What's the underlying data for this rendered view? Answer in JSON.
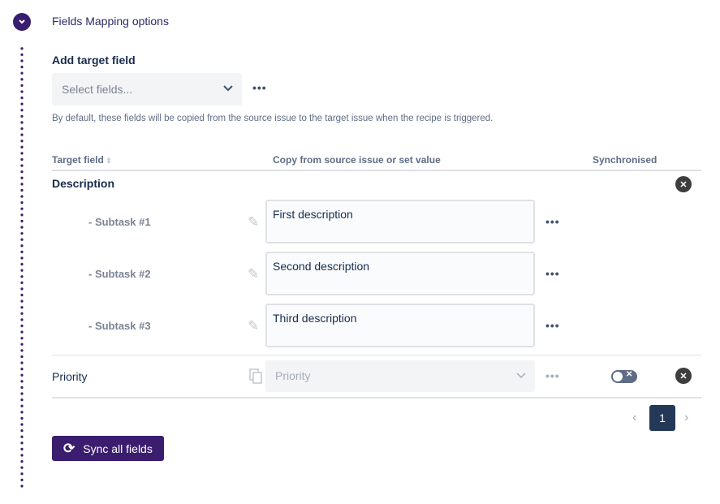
{
  "section": {
    "title": "Fields Mapping options"
  },
  "add_target": {
    "label": "Add target field",
    "placeholder": "Select fields...",
    "help": "By default, these fields will be copied from the source issue to the target issue when the recipe is triggered."
  },
  "table": {
    "headers": [
      "Target field",
      "Copy from source issue or set value",
      "Synchronised"
    ],
    "description": {
      "name": "Description",
      "subtasks": [
        {
          "label": "- Subtask #1",
          "value": "First description"
        },
        {
          "label": "- Subtask #2",
          "value": "Second description"
        },
        {
          "label": "- Subtask #3",
          "value": "Third description"
        }
      ]
    },
    "priority": {
      "name": "Priority",
      "placeholder": "Priority",
      "synchronised": false
    }
  },
  "pagination": {
    "current": "1"
  },
  "sync_button": {
    "label": "Sync all fields"
  },
  "colors": {
    "accent": "#3a1d6e",
    "page_active": "#253858"
  }
}
